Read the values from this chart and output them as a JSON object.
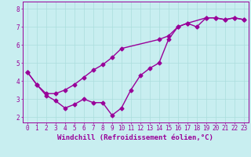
{
  "xlabel": "Windchill (Refroidissement éolien,°C)",
  "bg_color": "#c8eef0",
  "line_color": "#990099",
  "grid_color": "#aadddd",
  "xlim": [
    -0.5,
    23.5
  ],
  "ylim": [
    1.7,
    8.4
  ],
  "xticks": [
    0,
    1,
    2,
    3,
    4,
    5,
    6,
    7,
    8,
    9,
    10,
    11,
    12,
    13,
    14,
    15,
    16,
    17,
    18,
    19,
    20,
    21,
    22,
    23
  ],
  "yticks": [
    2,
    3,
    4,
    5,
    6,
    7,
    8
  ],
  "line1_x": [
    0,
    1,
    2,
    3,
    4,
    5,
    6,
    7,
    8,
    9,
    10,
    11,
    12,
    13,
    14,
    15,
    16,
    17,
    18,
    19,
    20,
    21,
    22,
    23
  ],
  "line1_y": [
    4.5,
    3.8,
    3.2,
    2.9,
    2.5,
    2.7,
    3.0,
    2.8,
    2.8,
    2.1,
    2.5,
    3.5,
    4.3,
    4.7,
    5.0,
    6.3,
    7.0,
    7.2,
    7.0,
    7.5,
    7.5,
    7.4,
    7.5,
    7.4
  ],
  "line2_x": [
    0,
    1,
    2,
    3,
    4,
    5,
    6,
    7,
    8,
    9,
    10,
    14,
    15,
    16,
    17,
    19,
    20,
    21,
    22,
    23
  ],
  "line2_y": [
    4.5,
    3.8,
    3.3,
    3.3,
    3.5,
    3.8,
    4.2,
    4.6,
    4.9,
    5.3,
    5.8,
    6.3,
    6.5,
    7.0,
    7.2,
    7.5,
    7.5,
    7.4,
    7.5,
    7.4
  ],
  "markersize": 2.5,
  "linewidth": 1.0,
  "xlabel_fontsize": 6.5,
  "tick_fontsize": 5.5
}
